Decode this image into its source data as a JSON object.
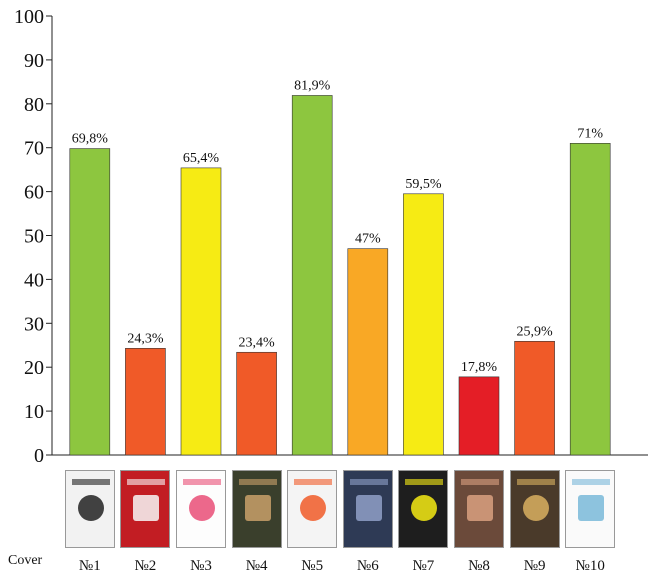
{
  "chart_data": {
    "type": "bar",
    "categories": [
      "№1",
      "№2",
      "№3",
      "№4",
      "№5",
      "№6",
      "№7",
      "№8",
      "№9",
      "№10"
    ],
    "values": [
      69.8,
      24.3,
      65.4,
      23.4,
      81.9,
      47,
      59.5,
      17.8,
      25.9,
      71
    ],
    "value_labels": [
      "69,8%",
      "24,3%",
      "65,4%",
      "23,4%",
      "81,9%",
      "47%",
      "59,5%",
      "17,8%",
      "25,9%",
      "71%"
    ],
    "bar_colors": [
      "#8dc63f",
      "#f05a28",
      "#f6eb14",
      "#f05a28",
      "#8dc63f",
      "#f9a825",
      "#f6eb14",
      "#e41e26",
      "#f05a28",
      "#8dc63f"
    ],
    "y_ticks": [
      "0",
      "10",
      "20",
      "30",
      "40",
      "50",
      "60",
      "70",
      "80",
      "90",
      "100"
    ],
    "ylim": [
      0,
      100
    ],
    "grid": false,
    "title": "",
    "xlabel": "",
    "ylabel": ""
  },
  "covers": {
    "row_label": "Cover",
    "colors": [
      "#f2f2f2",
      "#c21d23",
      "#fdfdfd",
      "#3a3f2c",
      "#f4f4f4",
      "#2e3a55",
      "#1e1e1e",
      "#6b4a3a",
      "#4a3a2a",
      "#fafafa"
    ],
    "accents": [
      "#222222",
      "#f7f7f7",
      "#e94e77",
      "#c9a06a",
      "#f05a28",
      "#8fa0c8",
      "#f6eb14",
      "#d9a080",
      "#d9b060",
      "#79b8d8"
    ]
  }
}
